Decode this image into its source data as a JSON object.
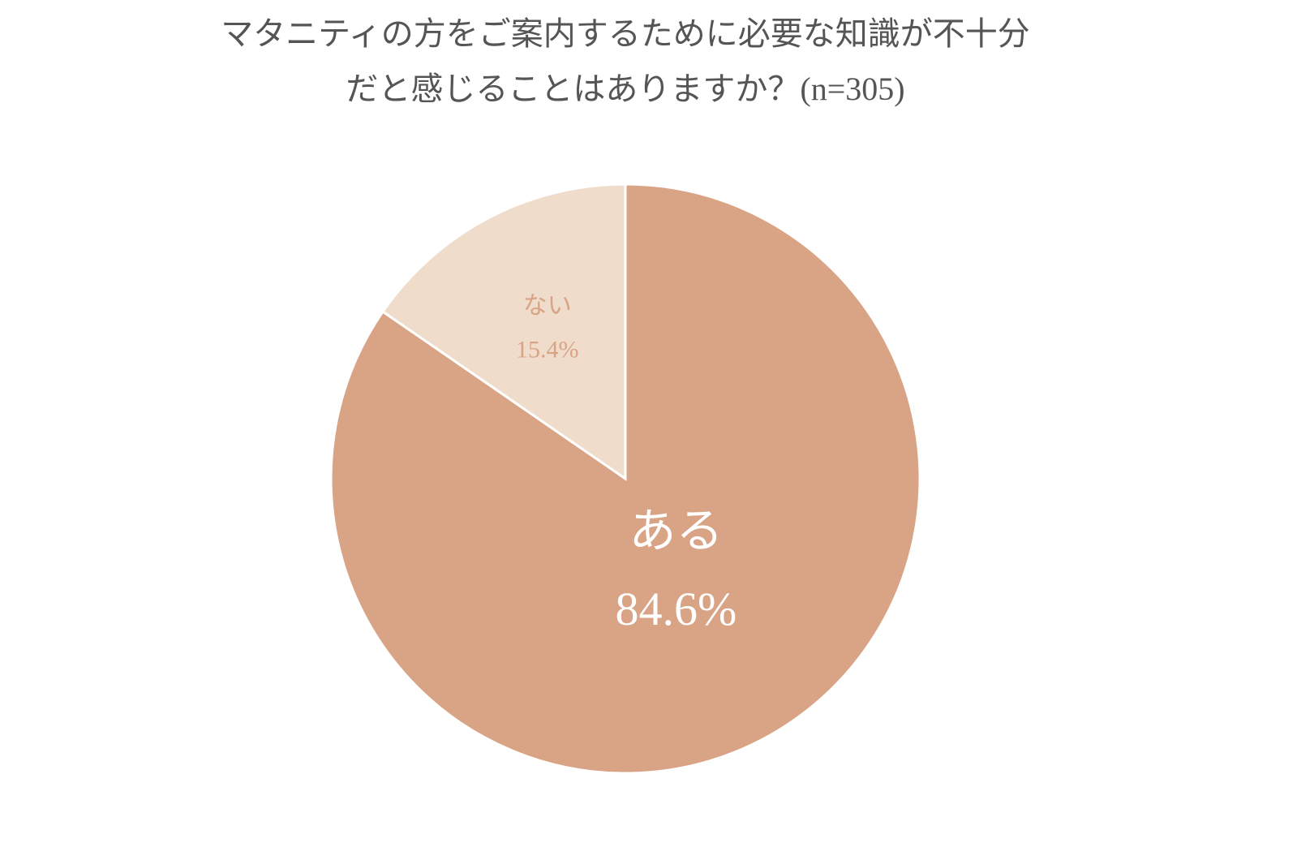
{
  "chart_data": {
    "type": "pie",
    "title": [
      "マタニティの方をご案内するために必要な知識が不十分",
      "だと感じることはありますか？(n=305)"
    ],
    "categories": [
      "ある",
      "ない"
    ],
    "values": [
      84.6,
      15.4
    ],
    "value_labels": [
      "84.6%",
      "15.4%"
    ],
    "colors": [
      "#d9a385",
      "#f0dccb"
    ]
  }
}
